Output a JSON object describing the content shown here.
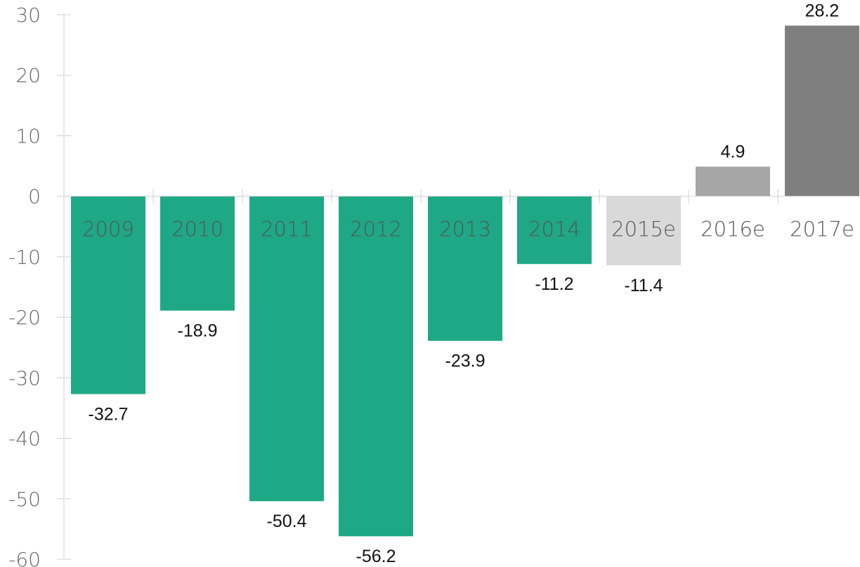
{
  "chart_data": {
    "type": "bar",
    "categories": [
      "2009",
      "2010",
      "2011",
      "2012",
      "2013",
      "2014",
      "2015e",
      "2016e",
      "2017e"
    ],
    "values": [
      -32.7,
      -18.9,
      -50.4,
      -56.2,
      -23.9,
      -11.2,
      -11.4,
      4.9,
      28.2
    ],
    "value_labels": [
      "-32.7",
      "-18.9",
      "-50.4",
      "-56.2",
      "-23.9",
      "-11.2",
      "-11.4",
      "4.9",
      "28.2"
    ],
    "bar_colors": [
      "#1ea886",
      "#1ea886",
      "#1ea886",
      "#1ea886",
      "#1ea886",
      "#1ea886",
      "#d9d9d9",
      "#a6a6a6",
      "#7f7f7f"
    ],
    "y_ticks": [
      30,
      20,
      10,
      0,
      -10,
      -20,
      -30,
      -40,
      -50,
      -60
    ],
    "y_tick_labels": [
      "30",
      "20",
      "10",
      "0",
      "-10",
      "-20",
      "-30",
      "-40",
      "-50",
      "-60"
    ],
    "ylim": [
      -60,
      30
    ],
    "title": "",
    "xlabel": "",
    "ylabel": "",
    "grid": false,
    "legend": "none"
  }
}
